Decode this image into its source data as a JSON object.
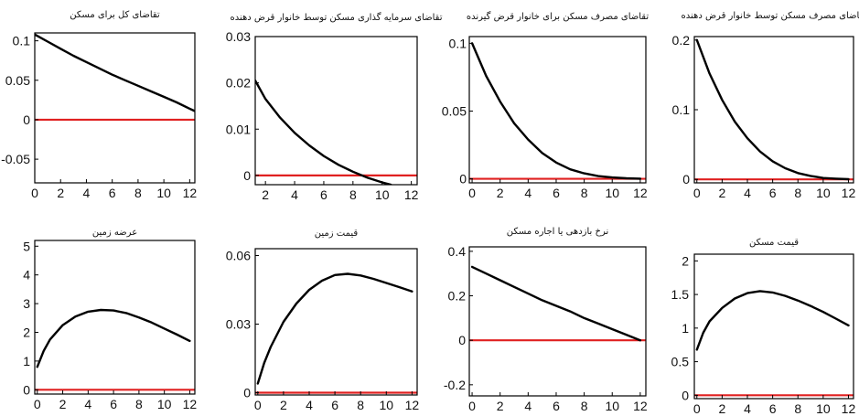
{
  "colors": {
    "curve": "#000000",
    "zero_line": "#e02020",
    "frame": "#000000"
  },
  "chart_data": [
    {
      "type": "line",
      "title": "تقاضای کل برای مسکن",
      "xlim": [
        0,
        12.4
      ],
      "ylim": [
        -0.08,
        0.11
      ],
      "xticks": [
        0,
        2,
        4,
        6,
        8,
        10,
        12
      ],
      "xtick_labels": [
        "0",
        "2",
        "4",
        "6",
        "8",
        "10",
        "12"
      ],
      "yticks": [
        0.1,
        0.05,
        0,
        -0.05
      ],
      "ytick_labels": [
        "0.1",
        "0.05",
        "0",
        "-0.05"
      ],
      "series": [
        {
          "x": [
            0,
            1,
            2,
            3,
            4,
            5,
            6,
            7,
            8,
            9,
            10,
            11,
            12,
            12.4
          ],
          "values": [
            0.108,
            0.099,
            0.09,
            0.081,
            0.073,
            0.065,
            0.057,
            0.05,
            0.043,
            0.036,
            0.029,
            0.022,
            0.014,
            0.011
          ]
        }
      ],
      "zero_line": 0
    },
    {
      "type": "line",
      "title": "تقاضای سرمایه گذاری مسکن توسط خانوار قرض دهنده",
      "xlim": [
        1.3,
        12.4
      ],
      "ylim": [
        -0.002,
        0.03
      ],
      "xticks": [
        2,
        4,
        6,
        8,
        10,
        12
      ],
      "xtick_labels": [
        "2",
        "4",
        "6",
        "8",
        "10",
        "12"
      ],
      "yticks": [
        0.03,
        0.02,
        0.01,
        0
      ],
      "ytick_labels": [
        "0.03",
        "0.02",
        "0.01",
        "0"
      ],
      "series": [
        {
          "x": [
            1.3,
            2,
            3,
            4,
            5,
            6,
            7,
            8,
            9,
            10,
            10.6
          ],
          "values": [
            0.0205,
            0.0165,
            0.0125,
            0.0092,
            0.0065,
            0.0042,
            0.0023,
            0.0008,
            -0.0005,
            -0.0015,
            -0.002
          ]
        }
      ],
      "zero_line": 0
    },
    {
      "type": "line",
      "title": "تقاضای مصرف مسکن برای خانوار قرض گیرنده",
      "xlim": [
        -0.2,
        12.4
      ],
      "ylim": [
        -0.003,
        0.105
      ],
      "xticks": [
        0,
        2,
        4,
        6,
        8,
        10,
        12
      ],
      "xtick_labels": [
        "0",
        "2",
        "4",
        "6",
        "8",
        "10",
        "12"
      ],
      "yticks": [
        0.1,
        0.05,
        0
      ],
      "ytick_labels": [
        "0.1",
        "0.05",
        "0"
      ],
      "series": [
        {
          "x": [
            0,
            1,
            2,
            3,
            4,
            5,
            6,
            7,
            8,
            9,
            10,
            11,
            12
          ],
          "values": [
            0.1,
            0.076,
            0.057,
            0.041,
            0.029,
            0.019,
            0.012,
            0.007,
            0.004,
            0.002,
            0.001,
            0.0004,
            0.0001
          ]
        }
      ],
      "zero_line": 0
    },
    {
      "type": "line",
      "title": "تقاضای مصرف مسکن توسط خانوار قرض دهنده",
      "xlim": [
        -0.2,
        12.4
      ],
      "ylim": [
        -0.005,
        0.205
      ],
      "xticks": [
        0,
        2,
        4,
        6,
        8,
        10,
        12
      ],
      "xtick_labels": [
        "0",
        "2",
        "4",
        "6",
        "8",
        "10",
        "12"
      ],
      "yticks": [
        0.2,
        0.1,
        0
      ],
      "ytick_labels": [
        "0.2",
        "0.1",
        "0"
      ],
      "series": [
        {
          "x": [
            0,
            1,
            2,
            3,
            4,
            5,
            6,
            7,
            8,
            9,
            10,
            11,
            12
          ],
          "values": [
            0.2,
            0.152,
            0.114,
            0.083,
            0.059,
            0.04,
            0.026,
            0.016,
            0.009,
            0.005,
            0.002,
            0.001,
            0.0003
          ]
        }
      ],
      "zero_line": 0
    },
    {
      "type": "line",
      "title": "عرضه زمین",
      "xlim": [
        -0.2,
        12.4
      ],
      "ylim": [
        -0.15,
        5.2
      ],
      "xticks": [
        0,
        2,
        4,
        6,
        8,
        10,
        12
      ],
      "xtick_labels": [
        "0",
        "2",
        "4",
        "6",
        "8",
        "10",
        "12"
      ],
      "yticks": [
        5,
        4,
        3,
        2,
        1,
        0
      ],
      "ytick_labels": [
        "5",
        "4",
        "3",
        "2",
        "1",
        "0"
      ],
      "series": [
        {
          "x": [
            0,
            0.5,
            1,
            2,
            3,
            4,
            5,
            6,
            7,
            8,
            9,
            10,
            11,
            12
          ],
          "values": [
            0.8,
            1.35,
            1.75,
            2.25,
            2.55,
            2.72,
            2.78,
            2.76,
            2.67,
            2.52,
            2.34,
            2.13,
            1.92,
            1.7
          ]
        }
      ],
      "zero_line": 0
    },
    {
      "type": "line",
      "title": "قیمت زمین",
      "xlim": [
        -0.2,
        12.4
      ],
      "ylim": [
        -0.001,
        0.063
      ],
      "xticks": [
        0,
        2,
        4,
        6,
        8,
        10,
        12
      ],
      "xtick_labels": [
        "0",
        "2",
        "4",
        "6",
        "8",
        "10",
        "12"
      ],
      "yticks": [
        0.06,
        0.03,
        0
      ],
      "ytick_labels": [
        "0.06",
        "0.03",
        "0"
      ],
      "series": [
        {
          "x": [
            0,
            0.5,
            1,
            2,
            3,
            4,
            5,
            6,
            7,
            8,
            9,
            10,
            11,
            12
          ],
          "values": [
            0.004,
            0.013,
            0.02,
            0.031,
            0.039,
            0.045,
            0.049,
            0.0515,
            0.052,
            0.0513,
            0.0498,
            0.048,
            0.0462,
            0.0443
          ]
        }
      ],
      "zero_line": 0
    },
    {
      "type": "line",
      "title": "نرخ بازدهی یا اجاره مسکن",
      "xlim": [
        -0.2,
        12.4
      ],
      "ylim": [
        -0.25,
        0.42
      ],
      "xticks": [
        0,
        2,
        4,
        6,
        8,
        10,
        12
      ],
      "xtick_labels": [
        "0",
        "2",
        "4",
        "6",
        "8",
        "10",
        "12"
      ],
      "yticks": [
        0.4,
        0.2,
        0,
        -0.2
      ],
      "ytick_labels": [
        "0.4",
        "0.2",
        "0",
        "-0.2"
      ],
      "series": [
        {
          "x": [
            0,
            1,
            2,
            3,
            4,
            5,
            6,
            7,
            8,
            9,
            10,
            11,
            12
          ],
          "values": [
            0.33,
            0.3,
            0.27,
            0.24,
            0.21,
            0.18,
            0.155,
            0.13,
            0.1,
            0.075,
            0.05,
            0.025,
            0.0
          ]
        }
      ],
      "zero_line": 0
    },
    {
      "type": "line",
      "title": "قیمت مسکن",
      "xlim": [
        -0.2,
        12.4
      ],
      "ylim": [
        -0.05,
        2.1
      ],
      "xticks": [
        0,
        2,
        4,
        6,
        8,
        10,
        12
      ],
      "xtick_labels": [
        "0",
        "2",
        "4",
        "6",
        "8",
        "10",
        "12"
      ],
      "yticks": [
        2,
        1.5,
        1,
        0.5,
        0
      ],
      "ytick_labels": [
        "2",
        "1.5",
        "1",
        "0.5",
        "0"
      ],
      "series": [
        {
          "x": [
            0,
            0.5,
            1,
            2,
            3,
            4,
            5,
            6,
            7,
            8,
            9,
            10,
            11,
            12
          ],
          "values": [
            0.68,
            0.93,
            1.1,
            1.3,
            1.44,
            1.52,
            1.55,
            1.53,
            1.48,
            1.41,
            1.33,
            1.24,
            1.14,
            1.04
          ]
        }
      ],
      "zero_line": 0
    }
  ]
}
